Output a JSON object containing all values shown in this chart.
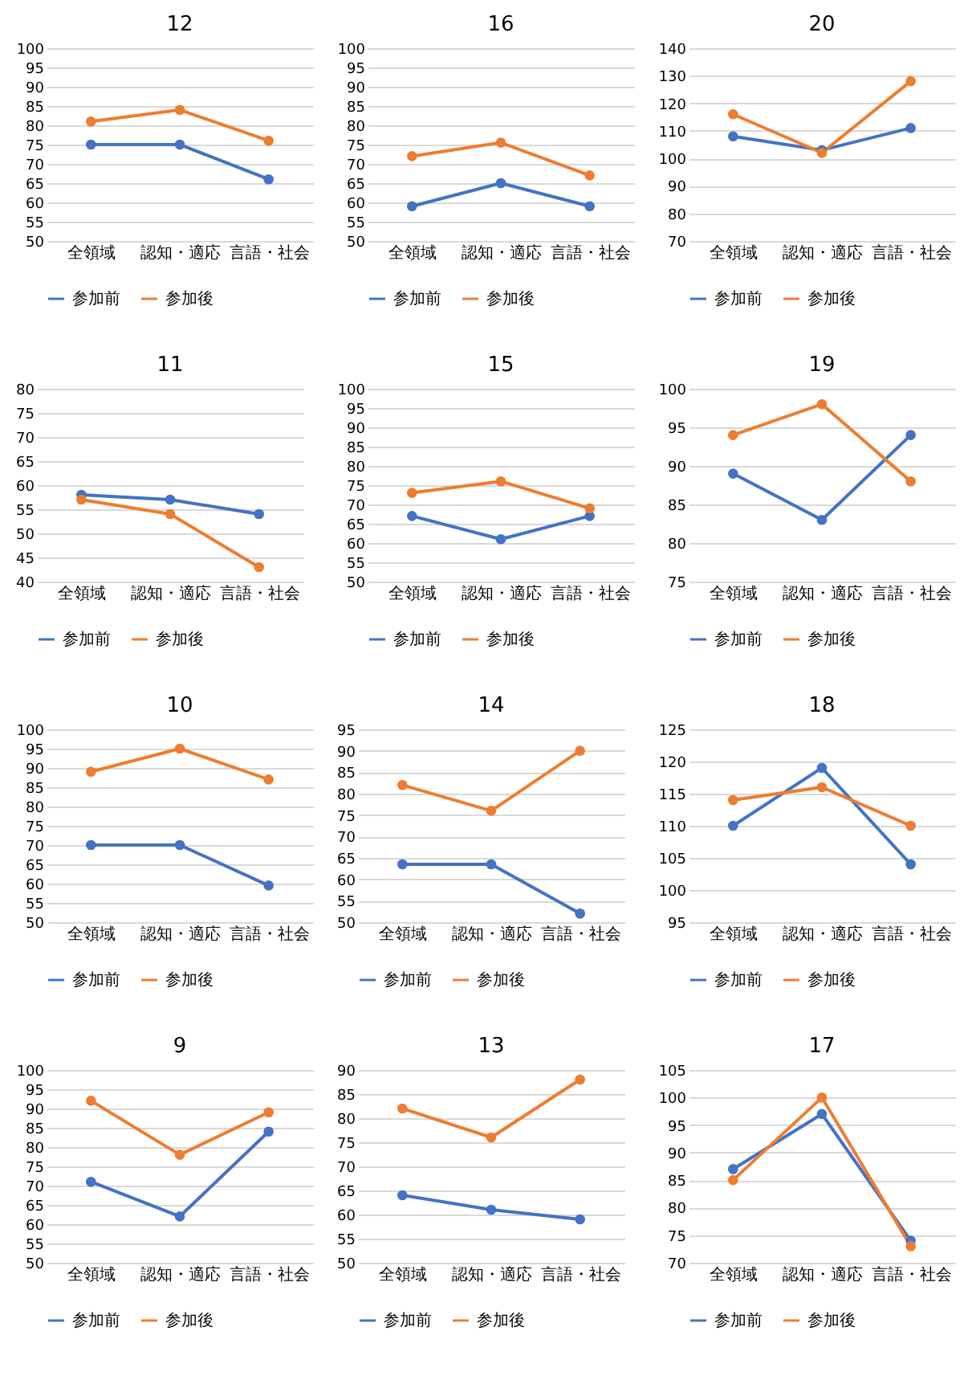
{
  "chart_data": [
    {
      "type": "line",
      "title": "9",
      "categories": [
        "全領域",
        "認知・適応",
        "言語・社会"
      ],
      "series": [
        {
          "name": "参加前",
          "color": "#4472c4",
          "values": [
            71,
            62,
            84
          ]
        },
        {
          "name": "参加後",
          "color": "#ed7d31",
          "values": [
            92,
            78,
            89
          ]
        }
      ],
      "ylim": [
        50,
        100
      ],
      "yticks": [
        50,
        55,
        60,
        65,
        70,
        75,
        80,
        85,
        90,
        95,
        100
      ],
      "grid": "y",
      "legend": "bottom",
      "marker": "circle"
    },
    {
      "type": "line",
      "title": "10",
      "categories": [
        "全領域",
        "認知・適応",
        "言語・社会"
      ],
      "series": [
        {
          "name": "参加前",
          "color": "#4472c4",
          "values": [
            70,
            70,
            59.5
          ]
        },
        {
          "name": "参加後",
          "color": "#ed7d31",
          "values": [
            89,
            95,
            87
          ]
        }
      ],
      "ylim": [
        50,
        100
      ],
      "yticks": [
        50,
        55,
        60,
        65,
        70,
        75,
        80,
        85,
        90,
        95,
        100
      ],
      "grid": "y",
      "legend": "bottom",
      "marker": "circle"
    },
    {
      "type": "line",
      "title": "11",
      "categories": [
        "全領域",
        "認知・適応",
        "言語・社会"
      ],
      "series": [
        {
          "name": "参加前",
          "color": "#4472c4",
          "values": [
            58,
            57,
            54
          ]
        },
        {
          "name": "参加後",
          "color": "#ed7d31",
          "values": [
            57,
            54,
            43
          ]
        }
      ],
      "ylim": [
        40,
        80
      ],
      "yticks": [
        40,
        45,
        50,
        55,
        60,
        65,
        70,
        75,
        80
      ],
      "grid": "y",
      "legend": "bottom",
      "marker": "circle"
    },
    {
      "type": "line",
      "title": "12",
      "categories": [
        "全領域",
        "認知・適応",
        "言語・社会"
      ],
      "series": [
        {
          "name": "参加前",
          "color": "#4472c4",
          "values": [
            75,
            75,
            66
          ]
        },
        {
          "name": "参加後",
          "color": "#ed7d31",
          "values": [
            81,
            84,
            76
          ]
        }
      ],
      "ylim": [
        50,
        100
      ],
      "yticks": [
        50,
        55,
        60,
        65,
        70,
        75,
        80,
        85,
        90,
        95,
        100
      ],
      "grid": "y",
      "legend": "bottom",
      "marker": "circle"
    },
    {
      "type": "line",
      "title": "13",
      "categories": [
        "全領域",
        "認知・適応",
        "言語・社会"
      ],
      "series": [
        {
          "name": "参加前",
          "color": "#4472c4",
          "values": [
            64,
            61,
            59
          ]
        },
        {
          "name": "参加後",
          "color": "#ed7d31",
          "values": [
            82,
            76,
            88
          ]
        }
      ],
      "ylim": [
        50,
        90
      ],
      "yticks": [
        50,
        55,
        60,
        65,
        70,
        75,
        80,
        85,
        90
      ],
      "grid": "y",
      "legend": "bottom",
      "marker": "circle"
    },
    {
      "type": "line",
      "title": "14",
      "categories": [
        "全領域",
        "認知・適応",
        "言語・社会"
      ],
      "series": [
        {
          "name": "参加前",
          "color": "#4472c4",
          "values": [
            63.5,
            63.5,
            52
          ]
        },
        {
          "name": "参加後",
          "color": "#ed7d31",
          "values": [
            82,
            76,
            90
          ]
        }
      ],
      "ylim": [
        50,
        95
      ],
      "yticks": [
        50,
        55,
        60,
        65,
        70,
        75,
        80,
        85,
        90,
        95
      ],
      "grid": "y",
      "legend": "bottom",
      "marker": "circle"
    },
    {
      "type": "line",
      "title": "15",
      "categories": [
        "全領域",
        "認知・適応",
        "言語・社会"
      ],
      "series": [
        {
          "name": "参加前",
          "color": "#4472c4",
          "values": [
            67,
            61,
            67
          ]
        },
        {
          "name": "参加後",
          "color": "#ed7d31",
          "values": [
            73,
            76,
            69
          ]
        }
      ],
      "ylim": [
        50,
        100
      ],
      "yticks": [
        50,
        55,
        60,
        65,
        70,
        75,
        80,
        85,
        90,
        95,
        100
      ],
      "grid": "y",
      "legend": "bottom",
      "marker": "circle"
    },
    {
      "type": "line",
      "title": "16",
      "categories": [
        "全領域",
        "認知・適応",
        "言語・社会"
      ],
      "series": [
        {
          "name": "参加前",
          "color": "#4472c4",
          "values": [
            59,
            65,
            59
          ]
        },
        {
          "name": "参加後",
          "color": "#ed7d31",
          "values": [
            72,
            75.5,
            67
          ]
        }
      ],
      "ylim": [
        50,
        100
      ],
      "yticks": [
        50,
        55,
        60,
        65,
        70,
        75,
        80,
        85,
        90,
        95,
        100
      ],
      "grid": "y",
      "legend": "bottom",
      "marker": "circle"
    },
    {
      "type": "line",
      "title": "17",
      "categories": [
        "全領域",
        "認知・適応",
        "言語・社会"
      ],
      "series": [
        {
          "name": "参加前",
          "color": "#4472c4",
          "values": [
            87,
            97,
            74
          ]
        },
        {
          "name": "参加後",
          "color": "#ed7d31",
          "values": [
            85,
            100,
            73
          ]
        }
      ],
      "ylim": [
        70,
        105
      ],
      "yticks": [
        70,
        75,
        80,
        85,
        90,
        95,
        100,
        105
      ],
      "grid": "y",
      "legend": "bottom",
      "marker": "circle"
    },
    {
      "type": "line",
      "title": "18",
      "categories": [
        "全領域",
        "認知・適応",
        "言語・社会"
      ],
      "series": [
        {
          "name": "参加前",
          "color": "#4472c4",
          "values": [
            110,
            119,
            104
          ]
        },
        {
          "name": "参加後",
          "color": "#ed7d31",
          "values": [
            114,
            116,
            110
          ]
        }
      ],
      "ylim": [
        95,
        125
      ],
      "yticks": [
        95,
        100,
        105,
        110,
        115,
        120,
        125
      ],
      "grid": "y",
      "legend": "bottom",
      "marker": "circle"
    },
    {
      "type": "line",
      "title": "19",
      "categories": [
        "全領域",
        "認知・適応",
        "言語・社会"
      ],
      "series": [
        {
          "name": "参加前",
          "color": "#4472c4",
          "values": [
            89,
            83,
            94
          ]
        },
        {
          "name": "参加後",
          "color": "#ed7d31",
          "values": [
            94,
            98,
            88
          ]
        }
      ],
      "ylim": [
        75,
        100
      ],
      "yticks": [
        75,
        80,
        85,
        90,
        95,
        100
      ],
      "grid": "y",
      "legend": "bottom",
      "marker": "circle"
    },
    {
      "type": "line",
      "title": "20",
      "categories": [
        "全領域",
        "認知・適応",
        "言語・社会"
      ],
      "series": [
        {
          "name": "参加前",
          "color": "#4472c4",
          "values": [
            108,
            103,
            111
          ]
        },
        {
          "name": "参加後",
          "color": "#ed7d31",
          "values": [
            116,
            102,
            128
          ]
        }
      ],
      "ylim": [
        70,
        140
      ],
      "yticks": [
        70,
        80,
        90,
        100,
        110,
        120,
        130,
        140
      ],
      "grid": "y",
      "legend": "bottom",
      "marker": "circle"
    }
  ]
}
